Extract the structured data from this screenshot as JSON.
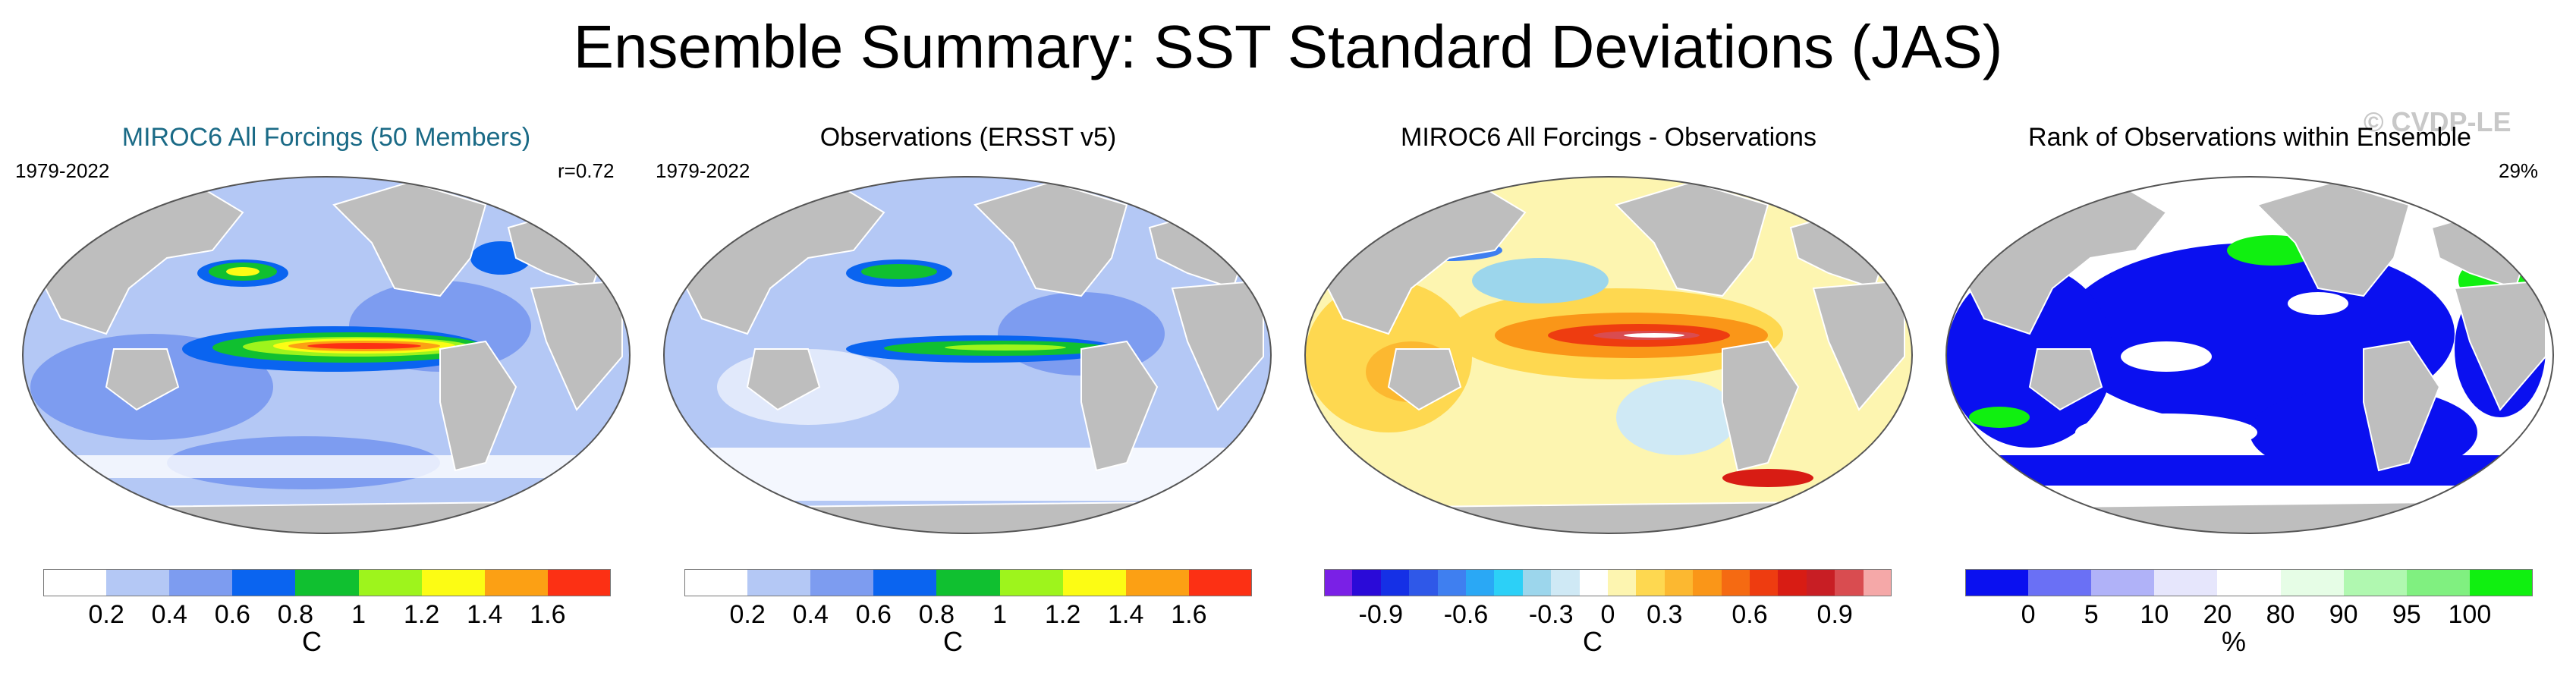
{
  "title": "Ensemble Summary: SST Standard Deviations (JAS)",
  "watermark": "© CVDP-LE",
  "panels": [
    {
      "title": "MIROC6 All Forcings (50 Members)",
      "period": "1979-2022",
      "stat": "r=0.72"
    },
    {
      "title": "Observations (ERSST v5)",
      "period": "1979-2022",
      "stat": ""
    },
    {
      "title": "MIROC6 All Forcings - Observations",
      "period": "",
      "stat": ""
    },
    {
      "title": "Rank of Observations within Ensemble",
      "period": "",
      "stat": "29%"
    }
  ],
  "colorbars": [
    {
      "unit": "C",
      "colors": [
        "#ffffff",
        "#b4c8f5",
        "#7d9cf0",
        "#0a64f0",
        "#10c030",
        "#9ef41c",
        "#fcfc14",
        "#fca014",
        "#fc3014"
      ],
      "ticks": [
        "0.2",
        "0.4",
        "0.6",
        "0.8",
        "1",
        "1.2",
        "1.4",
        "1.6"
      ]
    },
    {
      "unit": "C",
      "colors": [
        "#ffffff",
        "#b4c8f5",
        "#7d9cf0",
        "#0a64f0",
        "#10c030",
        "#9ef41c",
        "#fcfc14",
        "#fca014",
        "#fc3014"
      ],
      "ticks": [
        "0.2",
        "0.4",
        "0.6",
        "0.8",
        "1",
        "1.2",
        "1.4",
        "1.6"
      ]
    },
    {
      "unit": "C",
      "colors": [
        "#7a20e6",
        "#2a0ad8",
        "#1530e6",
        "#2f58e8",
        "#3f7ff0",
        "#2aa8f5",
        "#2cd0f7",
        "#9cd6ec",
        "#cfe9f5",
        "#ffffff",
        "#fdf5b0",
        "#fed850",
        "#fcb830",
        "#fa9618",
        "#f56a12",
        "#ee3c10",
        "#d81c14",
        "#c81e24",
        "#d94c50",
        "#f5a8a8"
      ],
      "ticks": [
        "-0.9",
        "-0.6",
        "-0.3",
        "0",
        "0.3",
        "0.6",
        "0.9"
      ],
      "tick_bounds": [
        2,
        5,
        8,
        10,
        12,
        15,
        18
      ]
    },
    {
      "unit": "%",
      "colors": [
        "#0a10f0",
        "#6a70f5",
        "#b0b2f8",
        "#e6e6fc",
        "#ffffff",
        "#e6fde6",
        "#b0f8b0",
        "#80f080",
        "#10f010"
      ],
      "ticks": [
        "0",
        "5",
        "10",
        "20",
        "80",
        "90",
        "95",
        "100"
      ]
    }
  ],
  "chart_data": [
    {
      "type": "heatmap",
      "title": "MIROC6 All Forcings (50 Members)",
      "subtitle": "1979-2022",
      "annotation": "r=0.72",
      "colorbar_unit": "C",
      "colorbar_levels": [
        0.2,
        0.4,
        0.6,
        0.8,
        1.0,
        1.2,
        1.4,
        1.6
      ]
    },
    {
      "type": "heatmap",
      "title": "Observations (ERSST v5)",
      "subtitle": "1979-2022",
      "colorbar_unit": "C",
      "colorbar_levels": [
        0.2,
        0.4,
        0.6,
        0.8,
        1.0,
        1.2,
        1.4,
        1.6
      ]
    },
    {
      "type": "heatmap",
      "title": "MIROC6 All Forcings - Observations",
      "colorbar_unit": "C",
      "colorbar_tick_labels": [
        -0.9,
        -0.6,
        -0.3,
        0,
        0.3,
        0.6,
        0.9
      ]
    },
    {
      "type": "heatmap",
      "title": "Rank of Observations within Ensemble",
      "annotation": "29%",
      "colorbar_unit": "%",
      "colorbar_levels": [
        0,
        5,
        10,
        20,
        80,
        90,
        95,
        100
      ]
    }
  ]
}
